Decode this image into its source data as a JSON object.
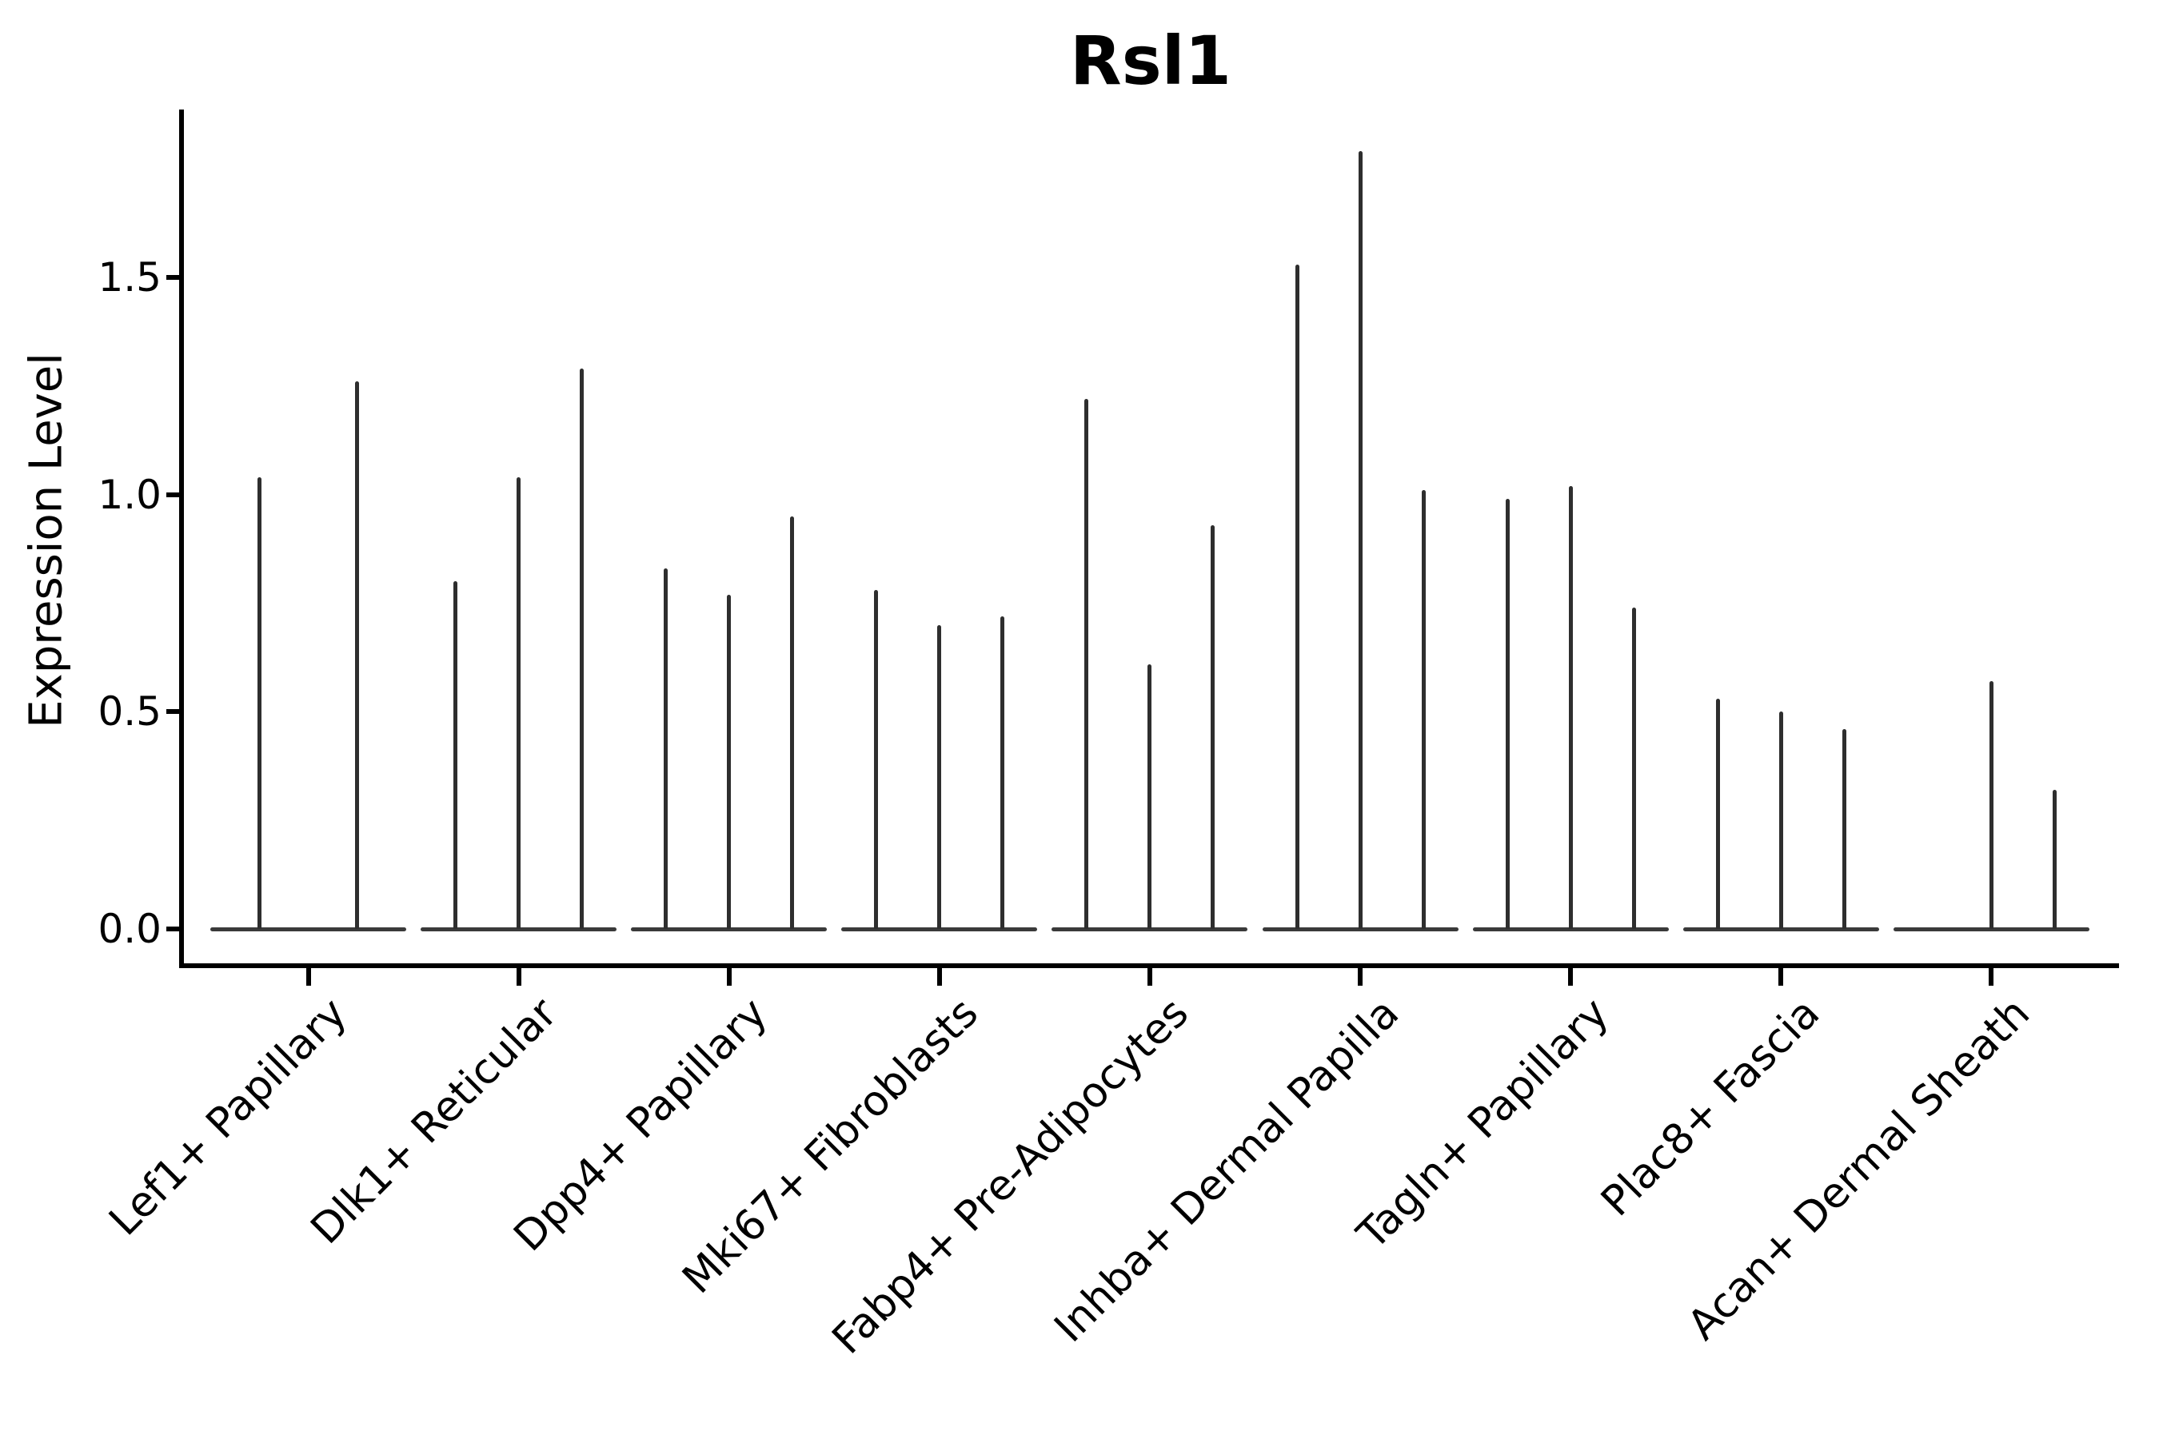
{
  "figure": {
    "title": "Rsl1",
    "y_axis": {
      "label": "Expression Level",
      "ticks": [
        {
          "value": 0.0,
          "label": "0.0"
        },
        {
          "value": 0.5,
          "label": "0.5"
        },
        {
          "value": 1.0,
          "label": "1.0"
        },
        {
          "value": 1.5,
          "label": "1.5"
        }
      ]
    }
  },
  "chart_data": {
    "type": "violin",
    "title": "Rsl1",
    "xlabel": "",
    "ylabel": "Expression Level",
    "ylim": [
      0,
      1.88
    ],
    "yticks": [
      0.0,
      0.5,
      1.0,
      1.5
    ],
    "grid": false,
    "legend": "none",
    "style": "sparse single-cell expression violins: each violin collapses to a flat dark base at 0 with a thin vertical spike reaching its maximum expression value",
    "categories": [
      "Lef1+ Papillary",
      "Dlk1+ Reticular",
      "Dpp4+ Papillary",
      "Mki67+ Fibroblasts",
      "Fabp4+ Pre-Adipocytes",
      "Inhba+ Dermal Papilla",
      "Tagln+ Papillary",
      "Plac8+ Fascia",
      "Acan+ Dermal Sheath"
    ],
    "groups": [
      {
        "category": "Lef1+ Papillary",
        "violin_max_values": [
          1.04,
          1.26
        ]
      },
      {
        "category": "Dlk1+ Reticular",
        "violin_max_values": [
          0.8,
          1.04,
          1.29
        ]
      },
      {
        "category": "Dpp4+ Papillary",
        "violin_max_values": [
          0.83,
          0.77,
          0.95
        ]
      },
      {
        "category": "Mki67+ Fibroblasts",
        "violin_max_values": [
          0.78,
          0.7,
          0.72
        ]
      },
      {
        "category": "Fabp4+ Pre-Adipocytes",
        "violin_max_values": [
          1.22,
          0.61,
          0.93
        ]
      },
      {
        "category": "Inhba+ Dermal Papilla",
        "violin_max_values": [
          1.53,
          1.79,
          1.01
        ]
      },
      {
        "category": "Tagln+ Papillary",
        "violin_max_values": [
          0.99,
          1.02,
          0.74
        ]
      },
      {
        "category": "Plac8+ Fascia",
        "violin_max_values": [
          0.53,
          0.5,
          0.46
        ]
      },
      {
        "category": "Acan+ Dermal Sheath",
        "violin_max_values": [
          0.0,
          0.57,
          0.32
        ]
      }
    ],
    "colors": {
      "violin_stroke": "#2e2e2e",
      "violin_base": "#3a3a3a",
      "axis": "#000000",
      "text": "#000000",
      "background": "#ffffff"
    }
  }
}
